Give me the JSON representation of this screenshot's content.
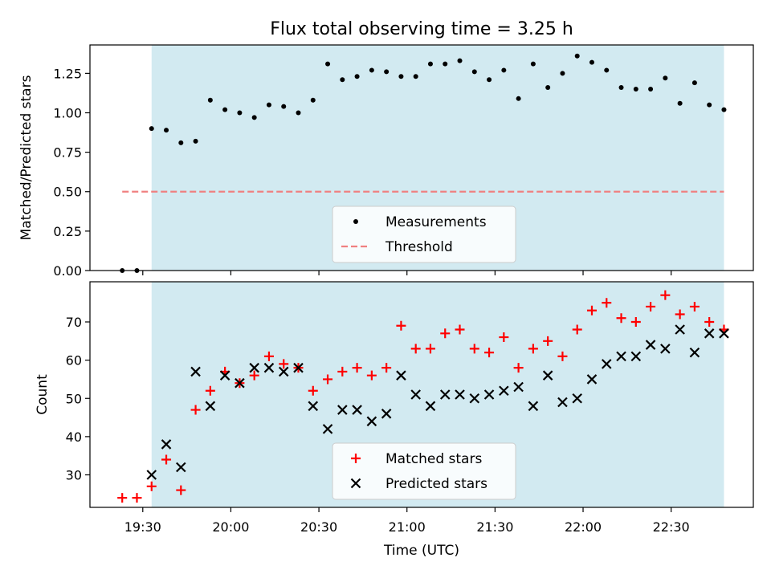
{
  "chart_data": [
    {
      "type": "scatter",
      "title": "Flux total observing time = 3.25 h",
      "xlabel": "",
      "ylabel": "Matched/Predicted stars",
      "ylim": [
        0,
        1.43
      ],
      "xlim": [
        "19:12",
        "22:58"
      ],
      "yticks": [
        "0.00",
        "0.25",
        "0.50",
        "0.75",
        "1.00",
        "1.25"
      ],
      "xticks": [
        "19:30",
        "20:00",
        "20:30",
        "21:00",
        "21:30",
        "22:00",
        "22:30"
      ],
      "shaded_span": {
        "from": "19:33",
        "to": "22:48",
        "color": "#add8e6"
      },
      "legend_position": "lower center",
      "series": [
        {
          "name": "Measurements",
          "marker": "dot",
          "color": "#000000",
          "x": [
            "19:23",
            "19:28",
            "19:33",
            "19:38",
            "19:43",
            "19:48",
            "19:53",
            "19:58",
            "20:03",
            "20:08",
            "20:13",
            "20:18",
            "20:23",
            "20:28",
            "20:33",
            "20:38",
            "20:43",
            "20:48",
            "20:53",
            "20:58",
            "21:03",
            "21:08",
            "21:13",
            "21:18",
            "21:23",
            "21:28",
            "21:33",
            "21:38",
            "21:43",
            "21:48",
            "21:53",
            "21:58",
            "22:03",
            "22:08",
            "22:13",
            "22:18",
            "22:23",
            "22:28",
            "22:33",
            "22:38",
            "22:43",
            "22:48"
          ],
          "y": [
            0.0,
            0.0,
            0.9,
            0.89,
            0.81,
            0.82,
            1.08,
            1.02,
            1.0,
            0.97,
            1.05,
            1.04,
            1.0,
            1.08,
            1.31,
            1.21,
            1.23,
            1.27,
            1.26,
            1.23,
            1.23,
            1.31,
            1.31,
            1.33,
            1.26,
            1.21,
            1.27,
            1.09,
            1.31,
            1.16,
            1.25,
            1.36,
            1.32,
            1.27,
            1.16,
            1.15,
            1.15,
            1.22,
            1.06,
            1.19,
            1.05,
            1.02
          ]
        },
        {
          "name": "Threshold",
          "style": "dashed",
          "color": "#f08080",
          "x": [
            "19:23",
            "22:48"
          ],
          "y": [
            0.5,
            0.5
          ]
        }
      ]
    },
    {
      "type": "scatter",
      "title": "",
      "xlabel": "Time (UTC)",
      "ylabel": "Count",
      "ylim": [
        21.5,
        80.5
      ],
      "xlim": [
        "19:12",
        "22:58"
      ],
      "yticks": [
        "30",
        "40",
        "50",
        "60",
        "70"
      ],
      "xticks": [
        "19:30",
        "20:00",
        "20:30",
        "21:00",
        "21:30",
        "22:00",
        "22:30"
      ],
      "shaded_span": {
        "from": "19:33",
        "to": "22:48",
        "color": "#add8e6"
      },
      "legend_position": "lower center",
      "series": [
        {
          "name": "Matched stars",
          "marker": "plus",
          "color": "#ff0000",
          "x": [
            "19:23",
            "19:28",
            "19:33",
            "19:38",
            "19:43",
            "19:48",
            "19:53",
            "19:58",
            "20:03",
            "20:08",
            "20:13",
            "20:18",
            "20:23",
            "20:28",
            "20:33",
            "20:38",
            "20:43",
            "20:48",
            "20:53",
            "20:58",
            "21:03",
            "21:08",
            "21:13",
            "21:18",
            "21:23",
            "21:28",
            "21:33",
            "21:38",
            "21:43",
            "21:48",
            "21:53",
            "21:58",
            "22:03",
            "22:08",
            "22:13",
            "22:18",
            "22:23",
            "22:28",
            "22:33",
            "22:38",
            "22:43",
            "22:48"
          ],
          "y": [
            24,
            24,
            27,
            34,
            26,
            47,
            52,
            57,
            54,
            56,
            61,
            59,
            58,
            52,
            55,
            57,
            58,
            56,
            58,
            69,
            63,
            63,
            67,
            68,
            63,
            62,
            66,
            58,
            63,
            65,
            61,
            68,
            73,
            75,
            71,
            70,
            74,
            77,
            72,
            74,
            70,
            68
          ]
        },
        {
          "name": "Predicted stars",
          "marker": "x",
          "color": "#000000",
          "x": [
            "19:33",
            "19:38",
            "19:43",
            "19:48",
            "19:53",
            "19:58",
            "20:03",
            "20:08",
            "20:13",
            "20:18",
            "20:23",
            "20:28",
            "20:33",
            "20:38",
            "20:43",
            "20:48",
            "20:53",
            "20:58",
            "21:03",
            "21:08",
            "21:13",
            "21:18",
            "21:23",
            "21:28",
            "21:33",
            "21:38",
            "21:43",
            "21:48",
            "21:53",
            "21:58",
            "22:03",
            "22:08",
            "22:13",
            "22:18",
            "22:23",
            "22:28",
            "22:33",
            "22:38",
            "22:43",
            "22:48"
          ],
          "y": [
            30,
            38,
            32,
            57,
            48,
            56,
            54,
            58,
            58,
            57,
            58,
            48,
            42,
            47,
            47,
            44,
            46,
            56,
            51,
            48,
            51,
            51,
            50,
            51,
            52,
            53,
            48,
            56,
            49,
            50,
            55,
            59,
            61,
            61,
            64,
            63,
            68,
            62,
            67,
            67
          ]
        }
      ]
    }
  ]
}
